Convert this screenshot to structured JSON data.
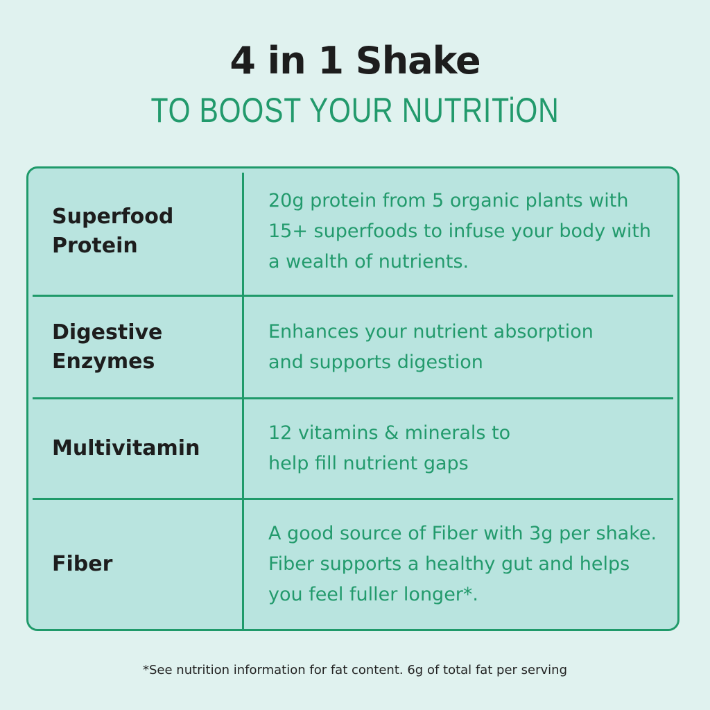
{
  "title": "4 in 1 Shake",
  "subtitle": "TO BOOST YOUR NUTRITiON",
  "rows": [
    {
      "label": "Superfood Protein",
      "desc": "20g protein from 5 organic plants with 15+ superfoods to infuse your body with a wealth of nutrients."
    },
    {
      "label": "Digestive Enzymes",
      "desc": "Enhances your nutrient absorption and supports digestion"
    },
    {
      "label": "Multivitamin",
      "desc": "12 vitamins & minerals to help fill nutrient gaps"
    },
    {
      "label": "Fiber",
      "desc": "A good source of Fiber with 3g per shake. Fiber supports a healthy gut and helps you feel fuller longer*."
    }
  ],
  "footnote": "*See nutrition information for fat content. 6g of total fat per serving",
  "colors": {
    "background": "#e0f2ef",
    "table": "#b9e4df",
    "accent": "#1f9a6a",
    "text": "#1d1d1d"
  }
}
